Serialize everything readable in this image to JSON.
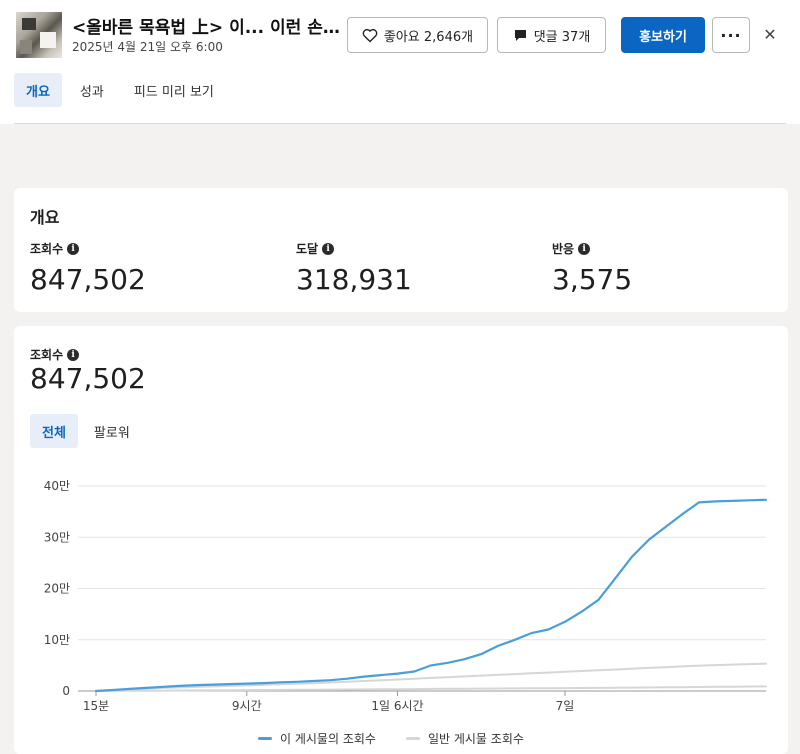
{
  "post": {
    "title": "<올바른 목욕법 上> 이... 이런 손...",
    "date": "2025년 4월 21일 오후 6:00",
    "like_label": "좋아요 2,646개",
    "comment_label": "댓글 37개",
    "promote_label": "홍보하기",
    "more_label": "···",
    "close_label": "✕"
  },
  "tabs": [
    {
      "label": "개요",
      "active": true
    },
    {
      "label": "성과",
      "active": false
    },
    {
      "label": "피드 미리 보기",
      "active": false
    }
  ],
  "overview": {
    "title": "개요",
    "metrics": [
      {
        "label": "조회수",
        "value": "847,502"
      },
      {
        "label": "도달",
        "value": "318,931"
      },
      {
        "label": "반응",
        "value": "3,575"
      }
    ]
  },
  "views": {
    "label": "조회수",
    "value": "847,502",
    "segments": [
      {
        "label": "전체",
        "active": true
      },
      {
        "label": "팔로워",
        "active": false
      }
    ]
  },
  "colors": {
    "accent": "#0a66c2",
    "series_primary": "#4a9fd8",
    "series_secondary": "#d6d6d6"
  },
  "chart_data": {
    "type": "line",
    "y_tick_labels": [
      "0",
      "10만",
      "20만",
      "30만",
      "40만"
    ],
    "y_ticks": [
      0,
      100000,
      200000,
      300000,
      400000
    ],
    "ylim": [
      0,
      400000
    ],
    "x_tick_labels": [
      {
        "label": "15분",
        "x": 0
      },
      {
        "label": "9시간",
        "x": 9
      },
      {
        "label": "1일 6시간",
        "x": 30
      },
      {
        "label": "7일",
        "x": 168
      }
    ],
    "x_positions": [
      0,
      1,
      2,
      3,
      4,
      5,
      6,
      7,
      8,
      9,
      10,
      11,
      12,
      13,
      14,
      15,
      16,
      17,
      18,
      19,
      20,
      21,
      22,
      23,
      24,
      25,
      26,
      27,
      28,
      29,
      30,
      31,
      32,
      33,
      34,
      35,
      36,
      37,
      38,
      39,
      40
    ],
    "grid": true,
    "legend_position": "bottom",
    "series": [
      {
        "name": "이 게시물의 조회수",
        "color": "#4a9fd8",
        "values": [
          0,
          2000,
          4000,
          6000,
          8000,
          10000,
          11500,
          12500,
          13500,
          14500,
          15500,
          17000,
          18000,
          19500,
          21000,
          24000,
          28000,
          31000,
          34000,
          38000,
          50000,
          55000,
          62000,
          72000,
          88000,
          100000,
          113000,
          120000,
          135000,
          155000,
          178000,
          220000,
          262000,
          295000,
          320000,
          345000,
          368000,
          370000,
          371000,
          372000,
          373000
        ]
      },
      {
        "name": "일반 게시물 조회수",
        "color": "#d6d6d6",
        "values": [
          0,
          1500,
          3000,
          4500,
          6000,
          7000,
          8000,
          9000,
          10000,
          11000,
          12000,
          13000,
          14000,
          15000,
          16500,
          18000,
          19500,
          21000,
          22500,
          24000,
          25500,
          27000,
          28500,
          30000,
          31500,
          33000,
          34500,
          36000,
          37500,
          39000,
          40500,
          42000,
          43500,
          45000,
          46500,
          48000,
          49500,
          50500,
          51500,
          52500,
          53500
        ]
      },
      {
        "name": "",
        "color": "#d6d6d6",
        "values": [
          0,
          200,
          400,
          600,
          800,
          1000,
          1200,
          1400,
          1600,
          1800,
          2000,
          2200,
          2400,
          2600,
          2800,
          3000,
          3200,
          3400,
          3600,
          3800,
          4000,
          4200,
          4400,
          4600,
          4800,
          5000,
          5200,
          5400,
          5600,
          5800,
          6000,
          6300,
          6600,
          6900,
          7200,
          7500,
          7800,
          8100,
          8400,
          8700,
          9000
        ]
      }
    ]
  }
}
